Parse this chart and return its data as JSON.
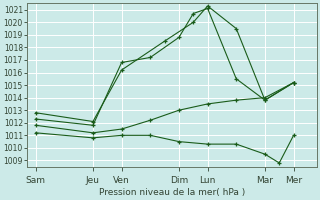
{
  "background_color": "#cceae8",
  "grid_color": "#ffffff",
  "line_color": "#1a5c1a",
  "xlabel": "Pression niveau de la mer( hPa )",
  "ylim": [
    1008.5,
    1021.5
  ],
  "yticks": [
    1009,
    1010,
    1011,
    1012,
    1013,
    1014,
    1015,
    1016,
    1017,
    1018,
    1019,
    1020,
    1021
  ],
  "x_labels": [
    "Sam",
    "Jeu",
    "Ven",
    "Dim",
    "Lun",
    "Mar",
    "Mer"
  ],
  "xtick_positions": [
    0,
    2,
    3,
    5,
    6,
    8,
    9
  ],
  "x_min": -0.3,
  "x_max": 9.8,
  "lines": [
    {
      "comment": "upper line: Sam->Jeu->Ven->Dim->Lun->post-Lun->Mar->Mer - big peak",
      "x": [
        0,
        2,
        3,
        4.5,
        5.5,
        6,
        7,
        8,
        9
      ],
      "y": [
        1012.8,
        1012.1,
        1016.2,
        1018.5,
        1020.0,
        1021.3,
        1019.5,
        1013.8,
        1015.2
      ]
    },
    {
      "x": [
        0,
        2,
        3,
        4,
        5,
        5.5,
        6,
        7,
        8,
        9
      ],
      "y": [
        1012.3,
        1011.8,
        1016.8,
        1017.2,
        1018.8,
        1020.7,
        1021.1,
        1015.5,
        1013.8,
        1015.2
      ]
    },
    {
      "x": [
        0,
        2,
        3,
        4,
        5,
        6,
        7,
        8,
        9
      ],
      "y": [
        1011.8,
        1011.2,
        1011.5,
        1012.2,
        1013.0,
        1013.5,
        1013.8,
        1014.0,
        1015.2
      ]
    },
    {
      "x": [
        0,
        2,
        3,
        4,
        5,
        6,
        7,
        8,
        8.5,
        9
      ],
      "y": [
        1011.2,
        1010.8,
        1011.0,
        1011.0,
        1010.5,
        1010.3,
        1010.3,
        1009.5,
        1008.8,
        1011.0
      ]
    }
  ]
}
